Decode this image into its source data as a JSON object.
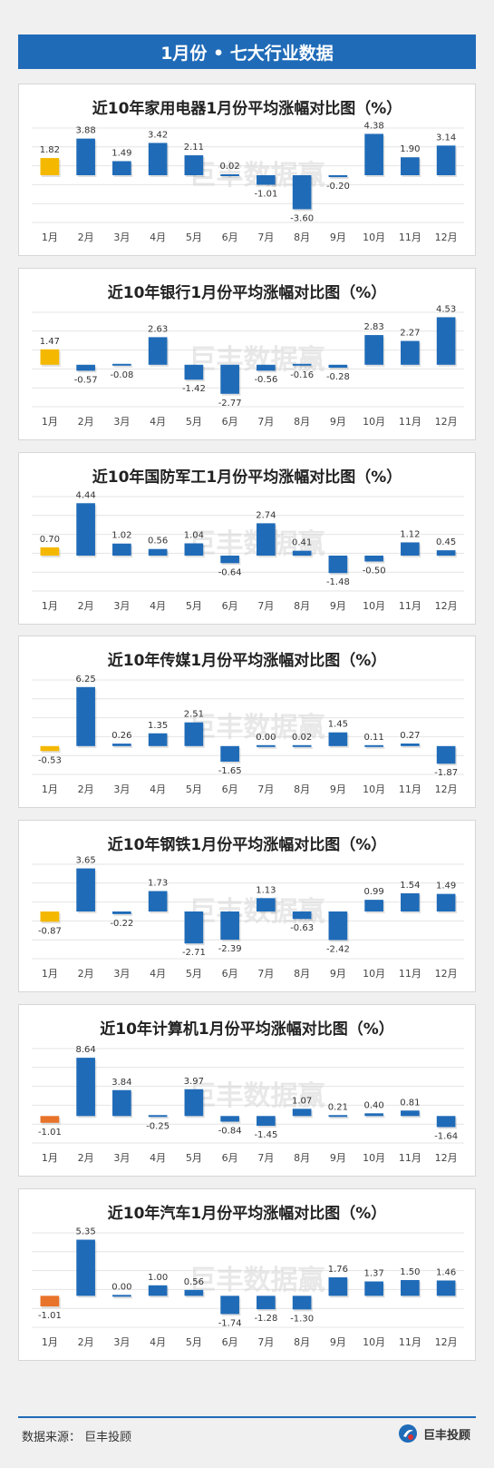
{
  "header": {
    "title": "1月份 • 七大行业数据"
  },
  "watermark": "巨丰数据赢",
  "footer": {
    "source": "数据来源：  巨丰投顾",
    "brand": "巨丰投顾"
  },
  "colors": {
    "bar": "#1f6bb8",
    "highlight_yellow": "#f5b800",
    "highlight_orange": "#e8732a",
    "header": "#1f6bb8"
  },
  "chart_data": [
    {
      "type": "bar",
      "title": "近10年家用电器1月份平均涨幅对比图（%）",
      "categories": [
        "1月",
        "2月",
        "3月",
        "4月",
        "5月",
        "6月",
        "7月",
        "8月",
        "9月",
        "10月",
        "11月",
        "12月"
      ],
      "values": [
        1.82,
        3.88,
        1.49,
        3.42,
        2.11,
        0.02,
        -1.01,
        -3.6,
        -0.2,
        4.38,
        1.9,
        3.14
      ],
      "labels": [
        "1.82",
        "3.88",
        "1.49",
        "3.42",
        "2.11",
        "0.02",
        "-1.01",
        "-3.60",
        "-0.20",
        "4.38",
        "1.90",
        "3.14"
      ],
      "highlight": "yellow",
      "ylim": [
        -5,
        5
      ]
    },
    {
      "type": "bar",
      "title": "近10年银行1月份平均涨幅对比图（%）",
      "categories": [
        "1月",
        "2月",
        "3月",
        "4月",
        "5月",
        "6月",
        "7月",
        "8月",
        "9月",
        "10月",
        "11月",
        "12月"
      ],
      "values": [
        1.47,
        -0.57,
        -0.08,
        2.63,
        -1.42,
        -2.77,
        -0.56,
        -0.16,
        -0.28,
        2.83,
        2.27,
        4.53
      ],
      "labels": [
        "1.47",
        "-0.57",
        "-0.08",
        "2.63",
        "-1.42",
        "-2.77",
        "-0.56",
        "-0.16",
        "-0.28",
        "2.83",
        "2.27",
        "4.53"
      ],
      "highlight": "yellow",
      "ylim": [
        -4,
        5
      ]
    },
    {
      "type": "bar",
      "title": "近10年国防军工1月份平均涨幅对比图（%）",
      "categories": [
        "1月",
        "2月",
        "3月",
        "4月",
        "5月",
        "6月",
        "7月",
        "8月",
        "9月",
        "10月",
        "11月",
        "12月"
      ],
      "values": [
        0.7,
        4.44,
        1.02,
        0.56,
        1.04,
        -0.64,
        2.74,
        0.41,
        -1.48,
        -0.5,
        1.12,
        0.45
      ],
      "labels": [
        "0.70",
        "4.44",
        "1.02",
        "0.56",
        "1.04",
        "-0.64",
        "2.74",
        "0.41",
        "-1.48",
        "-0.50",
        "1.12",
        "0.45"
      ],
      "highlight": "yellow",
      "ylim": [
        -3,
        5
      ]
    },
    {
      "type": "bar",
      "title": "近10年传媒1月份平均涨幅对比图（%）",
      "categories": [
        "1月",
        "2月",
        "3月",
        "4月",
        "5月",
        "6月",
        "7月",
        "8月",
        "9月",
        "10月",
        "11月",
        "12月"
      ],
      "values": [
        -0.53,
        6.25,
        0.26,
        1.35,
        2.51,
        -1.65,
        0.0,
        0.02,
        1.45,
        0.11,
        0.27,
        -1.87
      ],
      "labels": [
        "-0.53",
        "6.25",
        "0.26",
        "1.35",
        "2.51",
        "-1.65",
        "0.00",
        "0.02",
        "1.45",
        "0.11",
        "0.27",
        "-1.87"
      ],
      "highlight": "yellow",
      "ylim": [
        -3,
        7
      ]
    },
    {
      "type": "bar",
      "title": "近10年钢铁1月份平均涨幅对比图（%）",
      "categories": [
        "1月",
        "2月",
        "3月",
        "4月",
        "5月",
        "6月",
        "7月",
        "8月",
        "9月",
        "10月",
        "11月",
        "12月"
      ],
      "values": [
        -0.87,
        3.65,
        -0.22,
        1.73,
        -2.71,
        -2.39,
        1.13,
        -0.63,
        -2.42,
        0.99,
        1.54,
        1.49
      ],
      "labels": [
        "-0.87",
        "3.65",
        "-0.22",
        "1.73",
        "-2.71",
        "-2.39",
        "1.13",
        "-0.63",
        "-2.42",
        "0.99",
        "1.54",
        "1.49"
      ],
      "highlight": "yellow",
      "ylim": [
        -4,
        4
      ]
    },
    {
      "type": "bar",
      "title": "近10年计算机1月份平均涨幅对比图（%）",
      "categories": [
        "1月",
        "2月",
        "3月",
        "4月",
        "5月",
        "6月",
        "7月",
        "8月",
        "9月",
        "10月",
        "11月",
        "12月"
      ],
      "values": [
        -1.01,
        8.64,
        3.84,
        -0.25,
        3.97,
        -0.84,
        -1.45,
        1.07,
        0.21,
        0.4,
        0.81,
        -1.64
      ],
      "labels": [
        "-1.01",
        "8.64",
        "3.84",
        "-0.25",
        "3.97",
        "-0.84",
        "-1.45",
        "1.07",
        "0.21",
        "0.40",
        "0.81",
        "-1.64"
      ],
      "highlight": "orange",
      "ylim": [
        -4,
        10
      ]
    },
    {
      "type": "bar",
      "title": "近10年汽车1月份平均涨幅对比图（%）",
      "categories": [
        "1月",
        "2月",
        "3月",
        "4月",
        "5月",
        "6月",
        "7月",
        "8月",
        "9月",
        "10月",
        "11月",
        "12月"
      ],
      "values": [
        -1.01,
        5.35,
        0.0,
        1.0,
        0.56,
        -1.74,
        -1.28,
        -1.3,
        1.76,
        1.37,
        1.5,
        1.46
      ],
      "labels": [
        "-1.01",
        "5.35",
        "0.00",
        "1.00",
        "0.56",
        "-1.74",
        "-1.28",
        "-1.30",
        "1.76",
        "1.37",
        "1.50",
        "1.46"
      ],
      "highlight": "orange",
      "ylim": [
        -3,
        6
      ]
    }
  ]
}
